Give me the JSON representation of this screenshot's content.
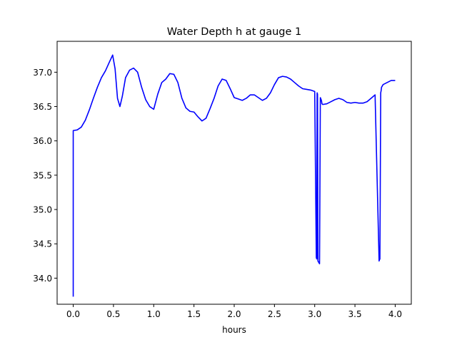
{
  "chart_data": {
    "type": "line",
    "title": "Water Depth h at gauge 1",
    "xlabel": "hours",
    "ylabel": "",
    "xlim": [
      -0.2,
      4.2
    ],
    "ylim": [
      33.62,
      37.45
    ],
    "xticks": [
      0.0,
      0.5,
      1.0,
      1.5,
      2.0,
      2.5,
      3.0,
      3.5,
      4.0
    ],
    "xtick_labels": [
      "0.0",
      "0.5",
      "1.0",
      "1.5",
      "2.0",
      "2.5",
      "3.0",
      "3.5",
      "4.0"
    ],
    "yticks": [
      34.0,
      34.5,
      35.0,
      35.5,
      36.0,
      36.5,
      37.0
    ],
    "ytick_labels": [
      "34.0",
      "34.5",
      "35.0",
      "35.5",
      "36.0",
      "36.5",
      "37.0"
    ],
    "grid": false,
    "series": [
      {
        "color": "#0000ff",
        "x": [
          0.0,
          0.0,
          0.05,
          0.1,
          0.15,
          0.2,
          0.25,
          0.3,
          0.35,
          0.4,
          0.45,
          0.49,
          0.52,
          0.55,
          0.58,
          0.61,
          0.65,
          0.7,
          0.75,
          0.8,
          0.85,
          0.9,
          0.95,
          1.0,
          1.05,
          1.1,
          1.15,
          1.2,
          1.25,
          1.3,
          1.35,
          1.4,
          1.45,
          1.5,
          1.55,
          1.6,
          1.65,
          1.7,
          1.75,
          1.8,
          1.85,
          1.9,
          1.95,
          2.0,
          2.05,
          2.1,
          2.15,
          2.2,
          2.25,
          2.3,
          2.35,
          2.4,
          2.45,
          2.5,
          2.55,
          2.6,
          2.65,
          2.7,
          2.75,
          2.8,
          2.85,
          2.9,
          2.95,
          3.0,
          3.02,
          3.025,
          3.03,
          3.035,
          3.04,
          3.05,
          3.06,
          3.07,
          3.08,
          3.085,
          3.09,
          3.1,
          3.15,
          3.2,
          3.25,
          3.3,
          3.35,
          3.4,
          3.45,
          3.5,
          3.55,
          3.6,
          3.65,
          3.7,
          3.75,
          3.8,
          3.805,
          3.81,
          3.82,
          3.825,
          3.83,
          3.85,
          3.9,
          3.95,
          4.0
        ],
        "y": [
          33.73,
          36.15,
          36.16,
          36.2,
          36.3,
          36.45,
          36.62,
          36.78,
          36.92,
          37.02,
          37.15,
          37.25,
          37.05,
          36.62,
          36.5,
          36.65,
          36.92,
          37.03,
          37.06,
          37.0,
          36.78,
          36.6,
          36.5,
          36.46,
          36.68,
          36.85,
          36.9,
          36.98,
          36.97,
          36.85,
          36.62,
          36.48,
          36.43,
          36.42,
          36.35,
          36.29,
          36.33,
          36.47,
          36.62,
          36.8,
          36.9,
          36.88,
          36.76,
          36.63,
          36.61,
          36.59,
          36.62,
          36.67,
          36.67,
          36.63,
          36.59,
          36.62,
          36.7,
          36.82,
          36.92,
          36.94,
          36.93,
          36.9,
          36.85,
          36.8,
          36.76,
          36.75,
          36.74,
          36.72,
          34.3,
          34.28,
          36.7,
          36.68,
          34.25,
          34.23,
          34.21,
          36.63,
          36.6,
          36.58,
          36.54,
          36.53,
          36.54,
          36.57,
          36.6,
          36.62,
          36.6,
          36.56,
          36.55,
          36.56,
          36.55,
          36.55,
          36.57,
          36.62,
          36.67,
          34.25,
          34.27,
          34.28,
          36.7,
          36.73,
          36.78,
          36.82,
          36.85,
          36.88,
          36.88
        ]
      }
    ]
  }
}
